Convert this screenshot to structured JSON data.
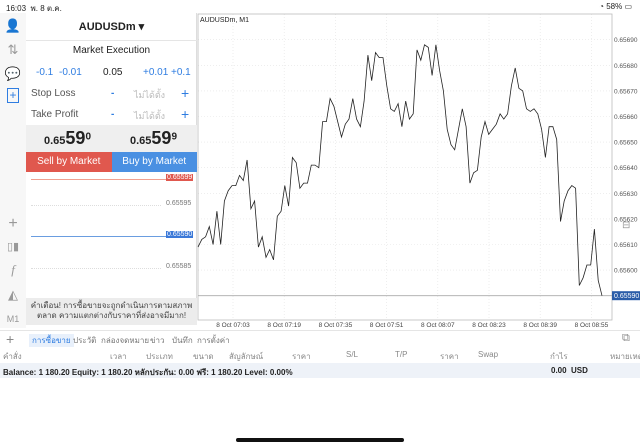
{
  "status": {
    "time": "16:03",
    "date": "พ. 8 ต.ค.",
    "battery": "58%"
  },
  "leftbar": {
    "icons": [
      "account-icon",
      "trade-arrows-icon",
      "chat-icon",
      "new-order-icon",
      "crosshair-icon",
      "candlestick-icon",
      "indicators-icon",
      "objects-icon"
    ],
    "timeframe": "M1"
  },
  "order": {
    "symbol": "AUDUSDm",
    "execution": "Market Execution",
    "volume": {
      "minus_big": "-0.1",
      "minus_small": "-0.01",
      "value": "0.05",
      "plus_small": "+0.01",
      "plus_big": "+0.1"
    },
    "stop_loss": {
      "label": "Stop Loss",
      "value": "ไม่ได้ตั้ง",
      "minus": "-",
      "plus": "+"
    },
    "take_profit": {
      "label": "Take Profit",
      "value": "ไม่ได้ตั้ง",
      "minus": "-",
      "plus": "+"
    },
    "bid": {
      "prefix": "0.65",
      "big": "59",
      "sup": "0"
    },
    "ask": {
      "prefix": "0.65",
      "big": "59",
      "sup": "9"
    },
    "sell_label": "Sell by Market",
    "buy_label": "Buy by Market",
    "mini_levels": {
      "ask": "0.65599",
      "l1": "0.65595",
      "bid": "0.65590",
      "l2": "0.65585"
    },
    "warning": "คำเตือน! การซื้อขายจะถูกดำเนินการตามสภาพตลาด ความแตกต่างกับราคาที่ส่งอาจมีมาก!",
    "colors": {
      "sell": "#e0584e",
      "buy": "#4a90e2"
    }
  },
  "chart_data": {
    "type": "line",
    "title": "AUDUSDm, M1",
    "x_start": "06:52",
    "x_end": "08:58",
    "xticks": [
      "8 Oct 07:03",
      "8 Oct 07:19",
      "8 Oct 07:35",
      "8 Oct 07:51",
      "8 Oct 08:07",
      "8 Oct 08:23",
      "8 Oct 08:39",
      "8 Oct 08:55"
    ],
    "yticks": [
      "0.65690",
      "0.65680",
      "0.65670",
      "0.65660",
      "0.65650",
      "0.65640",
      "0.65630",
      "0.65620",
      "0.65610",
      "0.65600"
    ],
    "current_price": "0.65590",
    "ylim": [
      0.65577,
      0.657
    ],
    "grid": true,
    "values": [
      0.65609,
      0.65612,
      0.65613,
      0.65617,
      0.6561,
      0.65623,
      0.6561,
      0.65627,
      0.65631,
      0.65633,
      0.65633,
      0.65637,
      0.65635,
      0.65643,
      0.65624,
      0.65627,
      0.65609,
      0.65613,
      0.65605,
      0.65608,
      0.65604,
      0.65621,
      0.65623,
      0.65633,
      0.65625,
      0.65644,
      0.65642,
      0.65632,
      0.65634,
      0.65634,
      0.65641,
      0.65641,
      0.6564,
      0.65658,
      0.65658,
      0.65667,
      0.65664,
      0.65658,
      0.65652,
      0.65657,
      0.65659,
      0.65667,
      0.65659,
      0.65656,
      0.65666,
      0.65684,
      0.65674,
      0.65685,
      0.65683,
      0.65683,
      0.65672,
      0.65663,
      0.65662,
      0.65665,
      0.65656,
      0.65666,
      0.65659,
      0.65661,
      0.65686,
      0.65682,
      0.65688,
      0.65687,
      0.65676,
      0.65688,
      0.65678,
      0.6567,
      0.65655,
      0.65649,
      0.65647,
      0.65655,
      0.65663,
      0.65656,
      0.65634,
      0.65638,
      0.65639,
      0.65652,
      0.65658,
      0.65653,
      0.65655,
      0.65657,
      0.65661,
      0.65659,
      0.65661,
      0.65672,
      0.65679,
      0.65671,
      0.6567,
      0.65663,
      0.65662,
      0.65663,
      0.65661,
      0.65655,
      0.65644,
      0.65656,
      0.65656,
      0.65651,
      0.65619,
      0.65627,
      0.65631,
      0.65633,
      0.65632,
      0.65594,
      0.65597,
      0.65602,
      0.65602,
      0.65616,
      0.65596,
      0.6559
    ]
  },
  "tabs": [
    "การซื้อขาย",
    "ประวัติ",
    "กล่องจดหมาย",
    "ข่าว",
    "บันทึก",
    "การตั้งค่า"
  ],
  "columns": [
    "คำสั่ง",
    "เวลา",
    "ประเภท",
    "ขนาด",
    "สัญลักษณ์",
    "ราคา",
    "S/L",
    "T/P",
    "ราคา",
    "Swap",
    "กำไร",
    "หมายเหตุ"
  ],
  "balance": {
    "text": "Balance: 1 180.20 Equity: 1 180.20 หลักประกัน: 0.00 ฟรี: 1 180.20 Level: 0.00%",
    "profit": "0.00",
    "currency": "USD"
  }
}
